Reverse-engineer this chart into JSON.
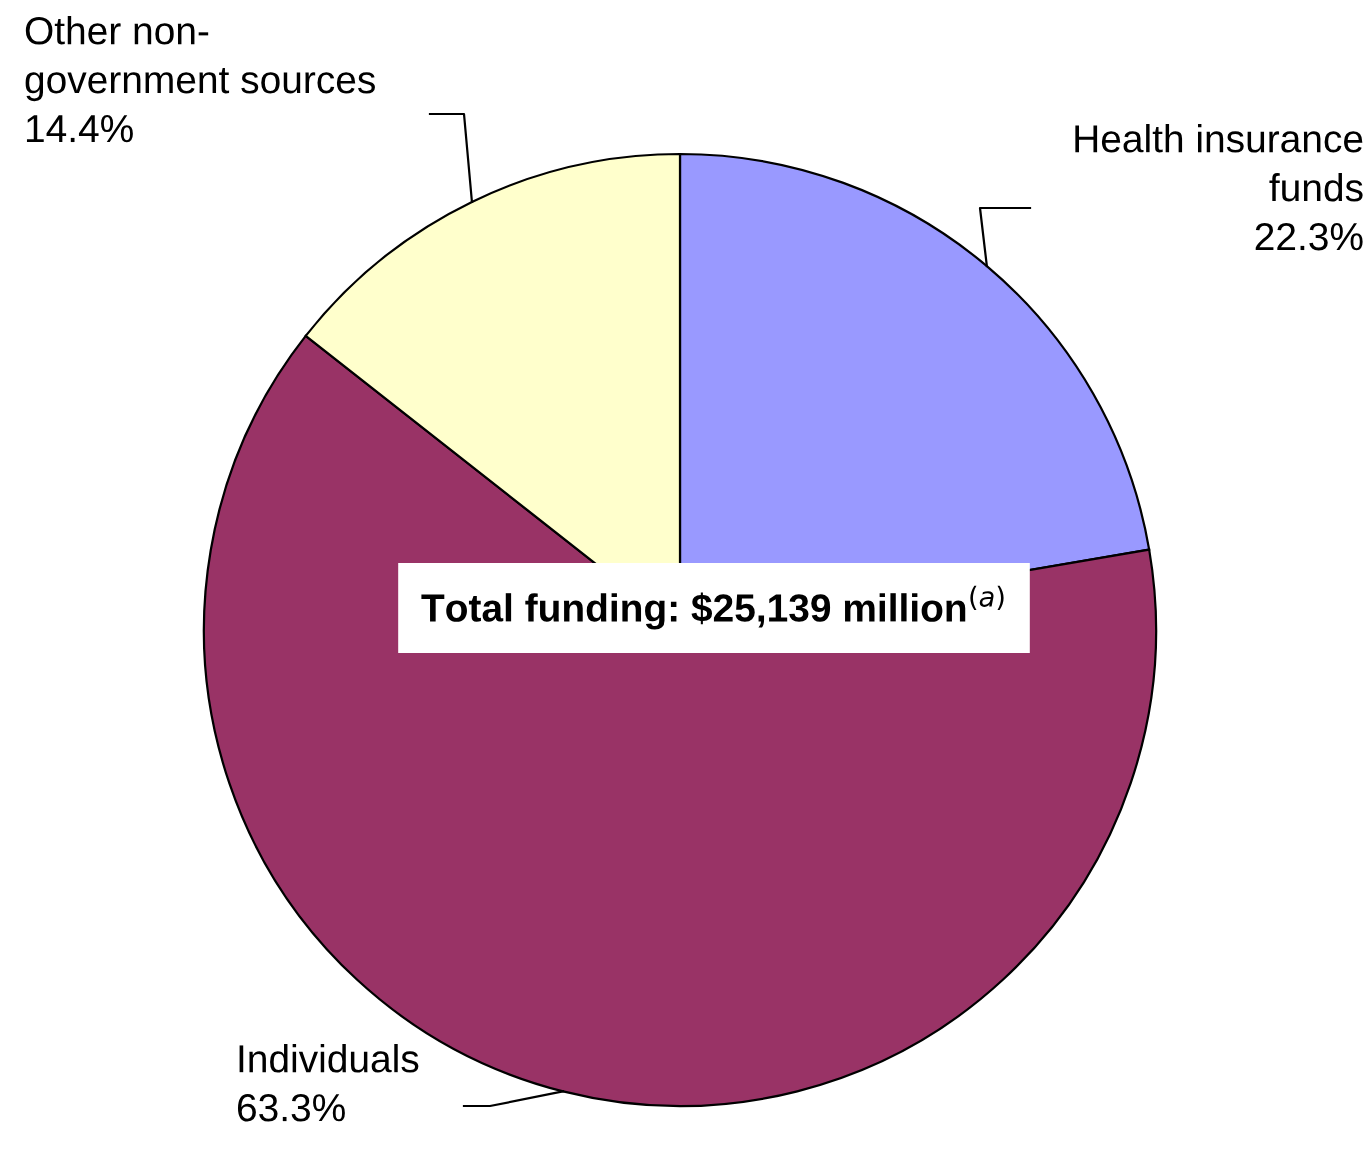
{
  "chart_data": {
    "type": "pie",
    "categories": [
      "Health insurance\nfunds",
      "Individuals",
      "Other non-\ngovernment sources"
    ],
    "values": [
      22.3,
      63.3,
      14.4
    ],
    "value_labels": [
      "22.3%",
      "63.3%",
      "14.4%"
    ],
    "colors": [
      "#9999ff",
      "#993366",
      "#ffffcc"
    ],
    "annotations": [
      "Total funding: $25,139 million$^{(a)}$"
    ]
  }
}
